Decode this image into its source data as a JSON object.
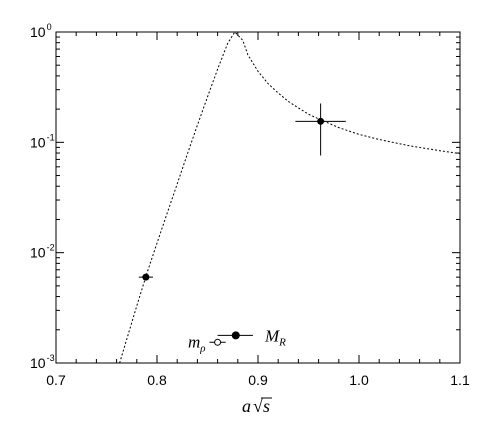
{
  "chart_data": {
    "type": "scatter",
    "xscale": "linear",
    "yscale": "log",
    "xlim": [
      0.7,
      1.1
    ],
    "ylim": [
      0.001,
      1
    ],
    "grid": false,
    "x_ticks": [
      {
        "value": 0.7,
        "label": "0.7"
      },
      {
        "value": 0.8,
        "label": "0.8"
      },
      {
        "value": 0.9,
        "label": "0.9"
      },
      {
        "value": 1.0,
        "label": "1.0"
      },
      {
        "value": 1.1,
        "label": "1.1"
      }
    ],
    "y_ticks": [
      {
        "value": 1,
        "base": "10",
        "exp": "0"
      },
      {
        "value": 0.1,
        "base": "10",
        "exp": "-1"
      },
      {
        "value": 0.01,
        "base": "10",
        "exp": "-2"
      },
      {
        "value": 0.001,
        "base": "10",
        "exp": "-3"
      }
    ],
    "xlabel": {
      "a": "a",
      "sqrt": "√",
      "s": "s"
    },
    "curve": {
      "style": "dotted",
      "x": [
        0.763,
        0.78,
        0.79,
        0.8,
        0.81,
        0.82,
        0.83,
        0.84,
        0.85,
        0.86,
        0.87,
        0.877,
        0.885,
        0.89,
        0.9,
        0.91,
        0.92,
        0.93,
        0.94,
        0.95,
        0.96,
        0.98,
        1.0,
        1.02,
        1.05,
        1.08,
        1.1
      ],
      "y": [
        0.001,
        0.0033,
        0.0065,
        0.0122,
        0.0227,
        0.042,
        0.078,
        0.143,
        0.258,
        0.46,
        0.79,
        1.0,
        0.84,
        0.62,
        0.44,
        0.34,
        0.28,
        0.235,
        0.205,
        0.18,
        0.163,
        0.136,
        0.118,
        0.106,
        0.093,
        0.084,
        0.079
      ]
    },
    "points": [
      {
        "x": 0.789,
        "y": 0.006,
        "xerr": 0.007,
        "yerr_low": 0.006,
        "yerr_high": 0.006
      },
      {
        "x": 0.962,
        "y": 0.155,
        "xerr": 0.025,
        "yerr_low": 0.076,
        "yerr_high": 0.225
      }
    ],
    "legend": [
      {
        "label_main": "M",
        "label_sub": "R",
        "marker": "filled-circle",
        "x_low": 0.86,
        "x_high": 0.895,
        "y": 0.00178,
        "x_center": 0.878
      },
      {
        "label_main": "m",
        "label_sub": "ρ",
        "marker": "open-circle",
        "x_low": 0.852,
        "x_high": 0.868,
        "y": 0.00154,
        "x_center": 0.86
      }
    ]
  }
}
